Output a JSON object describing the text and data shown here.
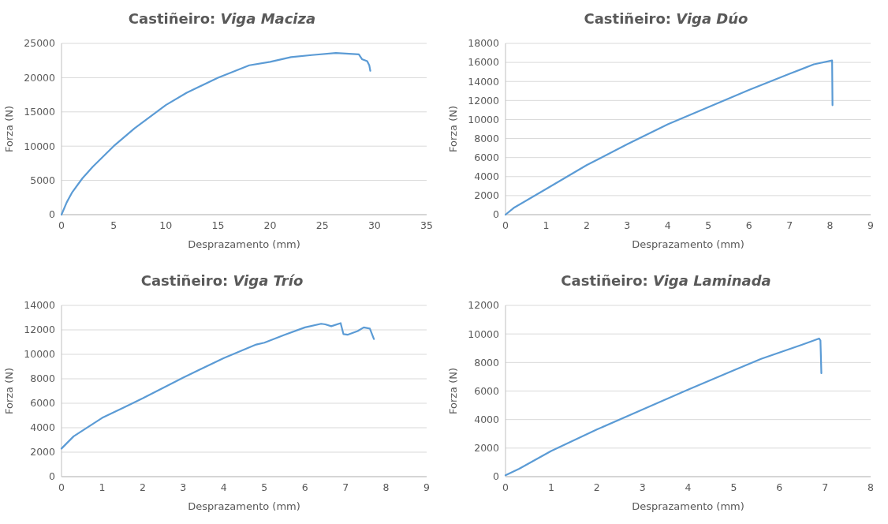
{
  "chart_data": [
    {
      "type": "line",
      "title": "Castiñeiro: Viga Maciza",
      "xlabel": "Desprazamento (mm)",
      "ylabel": "Forza (N)",
      "xlim": [
        0,
        35
      ],
      "xticks": [
        0,
        5,
        10,
        15,
        20,
        25,
        30,
        35
      ],
      "ylim": [
        0,
        25000
      ],
      "yticks": [
        0,
        5000,
        10000,
        15000,
        20000,
        25000
      ],
      "grid": "y",
      "marker": "none",
      "line_style": "solid",
      "series": [
        {
          "color": "#5b9bd5",
          "x": [
            0,
            0.5,
            1,
            2,
            3,
            5,
            7,
            10,
            12,
            15,
            18,
            20,
            22,
            24,
            26.3,
            28.5,
            28.8,
            29.3,
            29.5,
            29.6
          ],
          "values": [
            0,
            1800,
            3200,
            5300,
            7000,
            10000,
            12600,
            16000,
            17800,
            20000,
            21800,
            22300,
            23000,
            23300,
            23600,
            23400,
            22700,
            22400,
            21800,
            21000
          ]
        }
      ]
    },
    {
      "type": "line",
      "title": "Castiñeiro: Viga Dúo",
      "xlabel": "Desprazamento (mm)",
      "ylabel": "Forza (N)",
      "xlim": [
        0,
        9
      ],
      "xticks": [
        0,
        1,
        2,
        3,
        4,
        5,
        6,
        7,
        8,
        9
      ],
      "ylim": [
        0,
        18000
      ],
      "yticks": [
        0,
        2000,
        4000,
        6000,
        8000,
        10000,
        12000,
        14000,
        16000,
        18000
      ],
      "grid": "y",
      "marker": "none",
      "line_style": "solid",
      "series": [
        {
          "color": "#5b9bd5",
          "x": [
            0,
            0.2,
            1,
            2,
            3,
            4,
            5,
            6,
            7,
            7.6,
            8.05,
            8.06
          ],
          "values": [
            0,
            700,
            2700,
            5200,
            7400,
            9500,
            11300,
            13100,
            14800,
            15800,
            16200,
            11500
          ]
        }
      ]
    },
    {
      "type": "line",
      "title": "Castiñeiro: Viga Trío",
      "xlabel": "Desprazamento (mm)",
      "ylabel": "Forza (N)",
      "xlim": [
        0,
        9
      ],
      "xticks": [
        0,
        1,
        2,
        3,
        4,
        5,
        6,
        7,
        8,
        9
      ],
      "ylim": [
        0,
        14000
      ],
      "yticks": [
        0,
        2000,
        4000,
        6000,
        8000,
        10000,
        12000,
        14000
      ],
      "grid": "y",
      "marker": "none",
      "line_style": "solid",
      "series": [
        {
          "color": "#5b9bd5",
          "x": [
            0,
            0.3,
            1,
            1.5,
            2,
            3,
            4,
            4.8,
            5,
            5.5,
            6,
            6.4,
            6.5,
            6.65,
            6.88,
            6.95,
            7.05,
            7.3,
            7.45,
            7.6,
            7.7
          ],
          "values": [
            2300,
            3300,
            4800,
            5600,
            6400,
            8100,
            9700,
            10800,
            10950,
            11600,
            12200,
            12500,
            12450,
            12300,
            12550,
            11650,
            11600,
            11900,
            12200,
            12100,
            11250
          ]
        }
      ]
    },
    {
      "type": "line",
      "title": "Castiñeiro: Viga Laminada",
      "xlabel": "Desprazamento (mm)",
      "ylabel": "Forza (N)",
      "xlim": [
        0,
        8
      ],
      "xticks": [
        0,
        1,
        2,
        3,
        4,
        5,
        6,
        7,
        8
      ],
      "ylim": [
        0,
        12000
      ],
      "yticks": [
        0,
        2000,
        4000,
        6000,
        8000,
        10000,
        12000
      ],
      "grid": "y",
      "marker": "none",
      "line_style": "solid",
      "series": [
        {
          "color": "#5b9bd5",
          "x": [
            0,
            0.3,
            1,
            2,
            3,
            4,
            5,
            5.6,
            6,
            6.5,
            6.87,
            6.9,
            6.92
          ],
          "values": [
            100,
            550,
            1800,
            3300,
            4700,
            6100,
            7450,
            8250,
            8700,
            9250,
            9680,
            9550,
            7250
          ]
        }
      ]
    }
  ]
}
